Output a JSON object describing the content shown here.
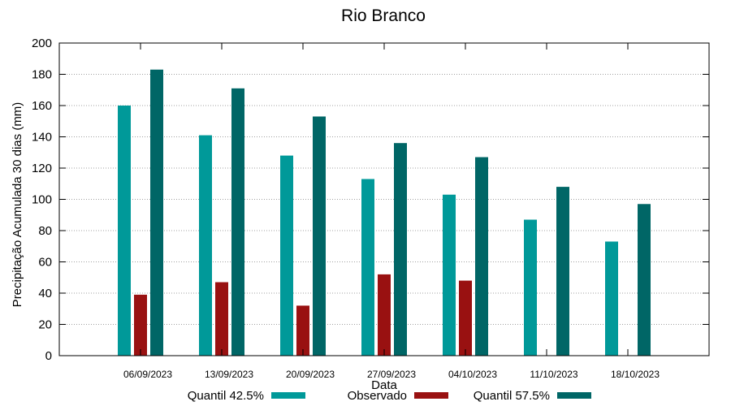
{
  "chart_data": {
    "type": "bar",
    "title": "Rio Branco",
    "xlabel": "Data",
    "ylabel": "Precipitação Acumulada 30 dias (mm)",
    "ylim": [
      0,
      200
    ],
    "yticks": [
      0,
      20,
      40,
      60,
      80,
      100,
      120,
      140,
      160,
      180,
      200
    ],
    "grid": true,
    "legend_position": "bottom",
    "categories": [
      "06/09/2023",
      "13/09/2023",
      "20/09/2023",
      "27/09/2023",
      "04/10/2023",
      "11/10/2023",
      "18/10/2023"
    ],
    "series": [
      {
        "name": "Quantil 42.5%",
        "color": "#009999",
        "values": [
          160,
          141,
          128,
          113,
          103,
          87,
          73
        ]
      },
      {
        "name": "Observado",
        "color": "#991111",
        "values": [
          39,
          47,
          32,
          52,
          48,
          null,
          null
        ]
      },
      {
        "name": "Quantil 57.5%",
        "color": "#006666",
        "values": [
          183,
          171,
          153,
          136,
          127,
          108,
          97
        ]
      }
    ]
  }
}
